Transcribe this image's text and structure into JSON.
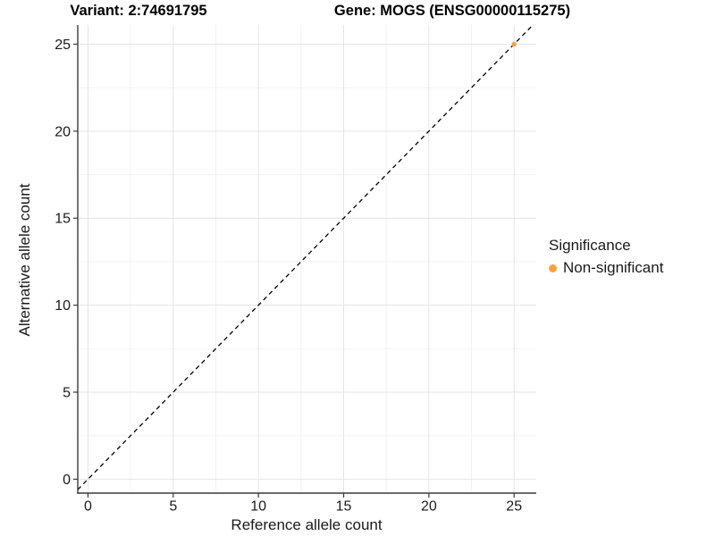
{
  "chart_data": {
    "type": "scatter",
    "titles": {
      "left": "Variant: 2:74691795",
      "right": "Gene: MOGS (ENSG00000115275)"
    },
    "xlabel": "Reference allele count",
    "ylabel": "Alternative allele count",
    "xticks": [
      0,
      5,
      10,
      15,
      20,
      25
    ],
    "yticks": [
      0,
      5,
      10,
      15,
      20,
      25
    ],
    "minor_ticks_x": [
      2.5,
      7.5,
      12.5,
      17.5,
      22.5
    ],
    "minor_ticks_y": [
      2.5,
      7.5,
      12.5,
      17.5,
      22.5
    ],
    "xlim": [
      -0.6,
      26.3
    ],
    "ylim": [
      -0.8,
      26.1
    ],
    "grid": "major+minor",
    "reference_line": {
      "type": "identity",
      "slope": 1,
      "intercept": 0,
      "style": "dashed",
      "color": "#000000"
    },
    "series": [
      {
        "name": "Non-significant",
        "color": "#F9A13C",
        "points": [
          {
            "x": 25,
            "y": 25
          }
        ]
      }
    ],
    "legend": {
      "title": "Significance",
      "position": "right",
      "entries": [
        {
          "label": "Non-significant",
          "color": "#F9A13C"
        }
      ]
    }
  },
  "colors": {
    "background": "#FFFFFF",
    "axis_line": "#3a3a3a",
    "tick_mark": "#3a3a3a",
    "tick_label": "#1a1a1a",
    "title_text": "#000000",
    "grid_major": "#E4E4E4",
    "grid_minor": "#F2F2F2",
    "point": "#F9A13C",
    "identity_line": "#000000"
  }
}
